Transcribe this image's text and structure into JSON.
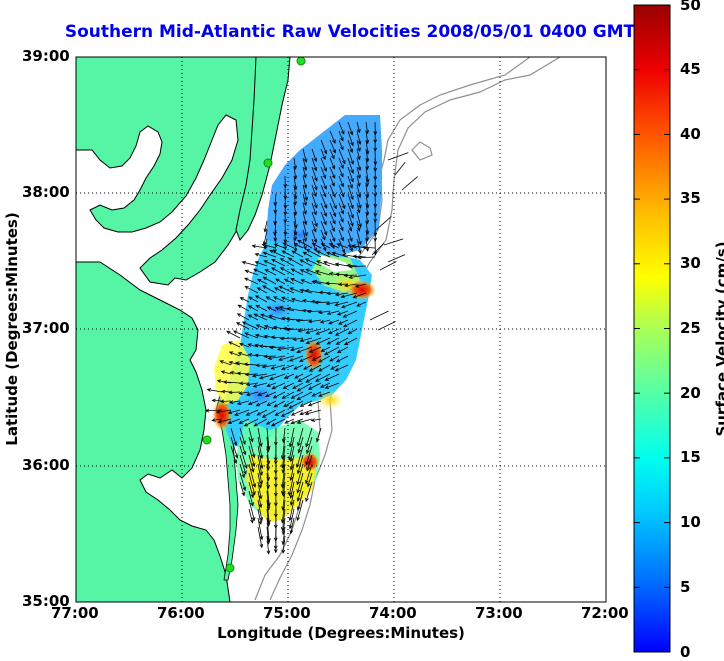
{
  "map": {
    "title": "Southern Mid-Atlantic Raw Velocities 2008/05/01 0400 GMT",
    "xlabel": "Longitude (Degrees:Minutes)",
    "ylabel": "Latitude (Degrees:Minutes)",
    "lon_ticks": [
      "77:00",
      "76:00",
      "75:00",
      "74:00",
      "73:00",
      "72:00"
    ],
    "lat_ticks": [
      "39:00",
      "38:00",
      "37:00",
      "36:00",
      "35:00"
    ],
    "lon_range": [
      -77,
      -72
    ],
    "lat_range": [
      35,
      39
    ],
    "grid": true,
    "land_color": "#55f5a5",
    "water_color": "#ffffff",
    "coastline_color": "#000000",
    "bathymetry_color": "#909090",
    "site_marker_color": "#22cc22"
  },
  "colorbar": {
    "label": "Surface Velocity (cm/s)",
    "ticks": [
      "0",
      "5",
      "10",
      "15",
      "20",
      "25",
      "30",
      "35",
      "40",
      "45",
      "50"
    ],
    "range": [
      0,
      50
    ],
    "colormap": "jet"
  }
}
